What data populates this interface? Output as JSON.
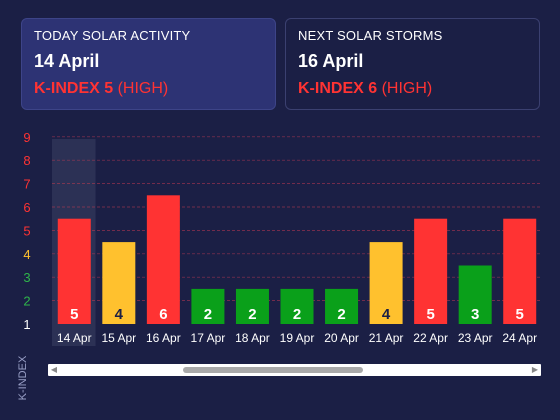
{
  "today": {
    "label": "TODAY SOLAR ACTIVITY",
    "date": "14 April",
    "kindex": "K-INDEX 5",
    "level": "(HIGH)"
  },
  "next": {
    "label": "NEXT SOLAR STORMS",
    "date": "16 April",
    "kindex": "K-INDEX 6",
    "level": "(HIGH)"
  },
  "chart_data": {
    "type": "bar",
    "categories": [
      "14 Apr",
      "15 Apr",
      "16 Apr",
      "17 Apr",
      "18 Apr",
      "19 Apr",
      "20 Apr",
      "21 Apr",
      "22 Apr",
      "23 Apr",
      "24 Apr"
    ],
    "values": [
      5,
      4,
      6,
      2,
      2,
      2,
      2,
      4,
      5,
      3,
      5
    ],
    "ylabel": "K-INDEX",
    "ylim": [
      1,
      9
    ],
    "yticks": [
      1,
      2,
      3,
      4,
      5,
      6,
      7,
      8,
      9
    ],
    "highlighted_category": "14 Apr",
    "grid": true,
    "colors": {
      "high": "#ff3333",
      "moderate": "#ffc12e",
      "low": "#0aa01a",
      "highlight": "#3a3f63"
    },
    "tick_colors": {
      "1": "#ffffff",
      "2": "#2fb44a",
      "3": "#2fb44a",
      "4": "#ffc12e",
      "5": "#ff3333",
      "6": "#ff3333",
      "7": "#ff3333",
      "8": "#ff3333",
      "9": "#ff3333"
    }
  },
  "scroll": {
    "left_arrow": "◀",
    "right_arrow": "▶"
  }
}
